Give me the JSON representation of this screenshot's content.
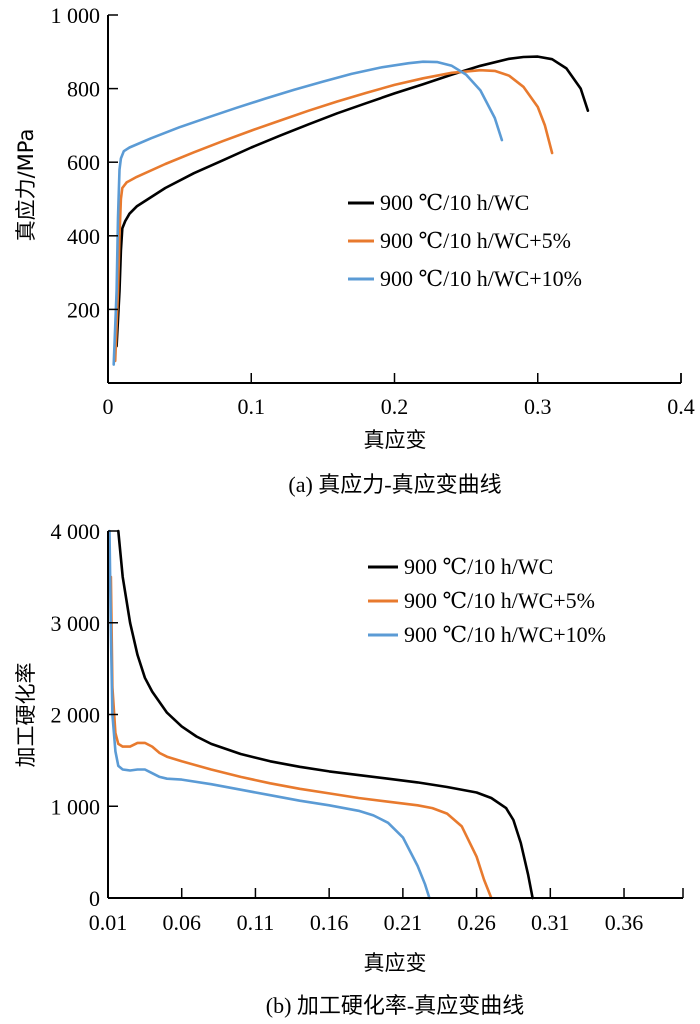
{
  "colors": {
    "black_series": "#000000",
    "orange_series": "#E87A2E",
    "blue_series": "#5B9BD5"
  },
  "chart_data": [
    {
      "type": "line",
      "panel": "a",
      "caption": "(a)  真应力-真应变曲线",
      "xlabel": "真应变",
      "ylabel": "真应力/MPa",
      "xlim": [
        0,
        0.4
      ],
      "ylim": [
        0,
        1000
      ],
      "x_ticks": [
        0,
        0.1,
        0.2,
        0.3,
        0.4
      ],
      "x_tick_labels": [
        "0",
        "0.1",
        "0.2",
        "0.3",
        "0.4"
      ],
      "y_ticks": [
        200,
        400,
        600,
        800,
        1000
      ],
      "y_tick_labels": [
        "200",
        "400",
        "600",
        "800",
        "1 000"
      ],
      "grid": false,
      "legend_position": "center-right",
      "series": [
        {
          "name": "900 ℃/10 h/WC",
          "color": "#000000",
          "x": [
            0.006,
            0.008,
            0.009,
            0.01,
            0.012,
            0.015,
            0.02,
            0.04,
            0.06,
            0.08,
            0.1,
            0.12,
            0.14,
            0.16,
            0.18,
            0.2,
            0.22,
            0.24,
            0.26,
            0.28,
            0.29,
            0.3,
            0.31,
            0.32,
            0.33,
            0.335
          ],
          "y": [
            100,
            250,
            360,
            420,
            440,
            460,
            480,
            530,
            570,
            605,
            640,
            672,
            703,
            733,
            760,
            787,
            812,
            838,
            862,
            881,
            886,
            887,
            880,
            855,
            800,
            740
          ]
        },
        {
          "name": "900 ℃/10 h/WC+5%",
          "color": "#E87A2E",
          "x": [
            0.005,
            0.007,
            0.008,
            0.009,
            0.01,
            0.013,
            0.02,
            0.04,
            0.06,
            0.08,
            0.1,
            0.12,
            0.14,
            0.16,
            0.18,
            0.2,
            0.22,
            0.24,
            0.26,
            0.27,
            0.28,
            0.29,
            0.3,
            0.305,
            0.31
          ],
          "y": [
            60,
            250,
            400,
            500,
            530,
            545,
            560,
            595,
            627,
            657,
            686,
            713,
            740,
            765,
            788,
            810,
            828,
            843,
            850,
            848,
            835,
            805,
            750,
            700,
            625
          ]
        },
        {
          "name": "900 ℃/10 h/WC+10%",
          "color": "#5B9BD5",
          "x": [
            0.004,
            0.006,
            0.007,
            0.008,
            0.009,
            0.011,
            0.015,
            0.03,
            0.05,
            0.07,
            0.09,
            0.11,
            0.13,
            0.15,
            0.17,
            0.19,
            0.21,
            0.22,
            0.23,
            0.24,
            0.25,
            0.26,
            0.27,
            0.275
          ],
          "y": [
            50,
            250,
            450,
            580,
            610,
            630,
            640,
            665,
            695,
            722,
            748,
            773,
            797,
            819,
            840,
            857,
            869,
            873,
            872,
            862,
            838,
            795,
            720,
            660
          ]
        }
      ]
    },
    {
      "type": "line",
      "panel": "b",
      "caption": "(b) 加工硬化率-真应变曲线",
      "xlabel": "真应变",
      "ylabel": "加工硬化率",
      "xlim": [
        0.01,
        0.4
      ],
      "ylim": [
        0,
        4000
      ],
      "x_ticks": [
        0.01,
        0.06,
        0.11,
        0.16,
        0.21,
        0.26,
        0.31,
        0.36
      ],
      "x_tick_labels": [
        "0.01",
        "0.06",
        "0.11",
        "0.16",
        "0.21",
        "0.26",
        "0.31",
        "0.36"
      ],
      "y_ticks": [
        0,
        1000,
        2000,
        3000,
        4000
      ],
      "y_tick_labels": [
        "0",
        "1 000",
        "2 000",
        "3 000",
        "4 000"
      ],
      "grid": false,
      "legend_position": "top-right",
      "series": [
        {
          "name": "900 ℃/10 h/WC",
          "color": "#000000",
          "x": [
            0.017,
            0.02,
            0.025,
            0.03,
            0.035,
            0.04,
            0.05,
            0.06,
            0.07,
            0.08,
            0.1,
            0.12,
            0.14,
            0.16,
            0.18,
            0.2,
            0.22,
            0.24,
            0.26,
            0.27,
            0.28,
            0.285,
            0.29,
            0.295,
            0.298
          ],
          "y": [
            4000,
            3500,
            3000,
            2650,
            2400,
            2250,
            2020,
            1870,
            1760,
            1680,
            1570,
            1490,
            1430,
            1380,
            1340,
            1300,
            1260,
            1210,
            1150,
            1090,
            980,
            850,
            600,
            250,
            0
          ]
        },
        {
          "name": "900 ℃/10 h/WC+5%",
          "color": "#E87A2E",
          "x": [
            0.012,
            0.013,
            0.015,
            0.017,
            0.02,
            0.025,
            0.03,
            0.035,
            0.04,
            0.045,
            0.05,
            0.06,
            0.08,
            0.1,
            0.12,
            0.14,
            0.16,
            0.18,
            0.2,
            0.22,
            0.23,
            0.24,
            0.25,
            0.26,
            0.265,
            0.27
          ],
          "y": [
            3500,
            2300,
            1800,
            1680,
            1650,
            1650,
            1690,
            1690,
            1650,
            1580,
            1540,
            1490,
            1400,
            1320,
            1250,
            1190,
            1140,
            1090,
            1050,
            1010,
            980,
            920,
            780,
            450,
            200,
            0
          ]
        },
        {
          "name": "900 ℃/10 h/WC+10%",
          "color": "#5B9BD5",
          "x": [
            0.011,
            0.012,
            0.013,
            0.015,
            0.017,
            0.02,
            0.025,
            0.03,
            0.035,
            0.04,
            0.045,
            0.05,
            0.06,
            0.08,
            0.1,
            0.12,
            0.14,
            0.16,
            0.18,
            0.19,
            0.2,
            0.21,
            0.22,
            0.225,
            0.228
          ],
          "y": [
            4000,
            2900,
            2000,
            1600,
            1440,
            1400,
            1390,
            1400,
            1400,
            1360,
            1320,
            1300,
            1290,
            1240,
            1180,
            1120,
            1060,
            1010,
            950,
            900,
            820,
            660,
            350,
            150,
            0
          ]
        }
      ]
    }
  ]
}
